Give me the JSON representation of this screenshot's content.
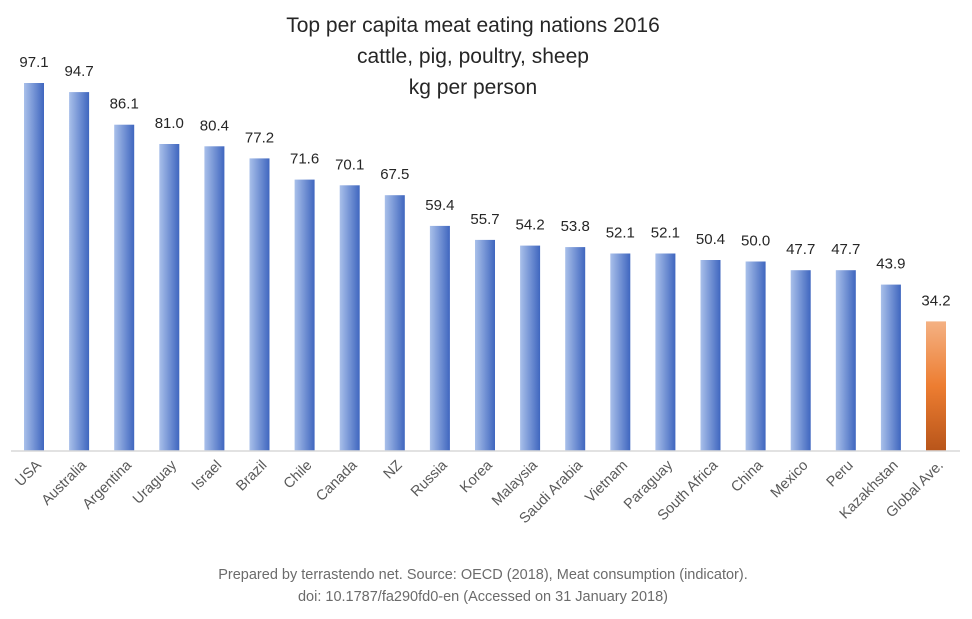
{
  "chart_data": {
    "type": "bar",
    "title": "Top per capita meat eating nations 2016",
    "title_lines": [
      "Top per capita meat eating nations 2016",
      "cattle, pig, poultry, sheep",
      "kg per person"
    ],
    "xlabel": "",
    "ylabel": "kg per person",
    "ylim": [
      0,
      97.1
    ],
    "grid": false,
    "legend": "none",
    "categories": [
      "USA",
      "Australia",
      "Argentina",
      "Uraguay",
      "Israel",
      "Brazil",
      "Chile",
      "Canada",
      "NZ",
      "Russia",
      "Korea",
      "Malaysia",
      "Saudi Arabia",
      "Vietnam",
      "Paraguay",
      "South Africa",
      "China",
      "Mexico",
      "Peru",
      "Kazakhstan",
      "Global Ave."
    ],
    "values": [
      97.1,
      94.7,
      86.1,
      81.0,
      80.4,
      77.2,
      71.6,
      70.1,
      67.5,
      59.4,
      55.7,
      54.2,
      53.8,
      52.1,
      52.1,
      50.4,
      50.0,
      47.7,
      47.7,
      43.9,
      34.2
    ],
    "value_labels": [
      "97.1",
      "94.7",
      "86.1",
      "81.0",
      "80.4",
      "77.2",
      "71.6",
      "70.1",
      "67.5",
      "59.4",
      "55.7",
      "54.2",
      "53.8",
      "52.1",
      "52.1",
      "50.4",
      "50.0",
      "47.7",
      "47.7",
      "43.9",
      "34.2"
    ],
    "highlight_category": "Global Ave.",
    "colors": {
      "bar_light": "#a9c0ea",
      "bar_dark": "#3f66bf",
      "highlight_light": "#f4b183",
      "highlight_mid": "#ed7d31",
      "highlight_dark": "#b8551a",
      "axis": "#d9d9d9"
    }
  },
  "footer": {
    "lines": [
      "Prepared by terrastendo net. Source: OECD (2018), Meat consumption (indicator).",
      "doi: 10.1787/fa290fd0-en (Accessed on 31 January 2018)"
    ]
  }
}
